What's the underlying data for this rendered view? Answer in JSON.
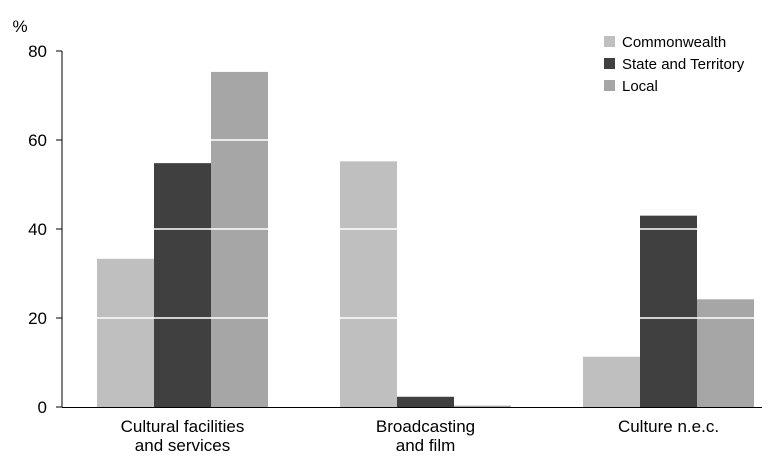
{
  "chart_data": {
    "type": "bar",
    "title": "",
    "xlabel": "",
    "ylabel": "%",
    "ylim": [
      0,
      80
    ],
    "yticks": [
      0,
      20,
      40,
      60,
      80
    ],
    "grid": "white gridlines drawn over bars only",
    "legend_position": "top-right",
    "categories": [
      [
        "Cultural facilities",
        "and services"
      ],
      [
        "Broadcasting",
        "and film"
      ],
      [
        "Culture n.e.c."
      ]
    ],
    "series": [
      {
        "name": "Commonwealth",
        "color": "#bfbfbf",
        "values": [
          33.3,
          55.2,
          11.3
        ]
      },
      {
        "name": "State and Territory",
        "color": "#404040",
        "values": [
          54.8,
          2.3,
          43.0
        ]
      },
      {
        "name": "Local",
        "color": "#a6a6a6",
        "values": [
          75.3,
          0.3,
          24.2
        ]
      }
    ]
  }
}
